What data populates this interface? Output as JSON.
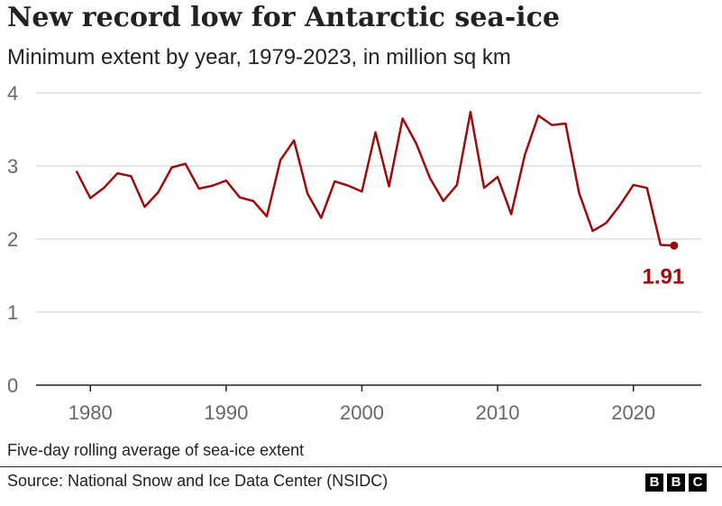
{
  "title": "New record low for Antarctic sea-ice",
  "subtitle": "Minimum extent by year, 1979-2023, in million sq km",
  "note": "Five-day rolling average of sea-ice extent",
  "source": "Source: National Snow and Ice Data Center (NSIDC)",
  "logo": [
    "B",
    "B",
    "C"
  ],
  "colors": {
    "line": "#9b0d0d",
    "grid": "#cccccc",
    "axis": "#222222",
    "tick_text": "#666666"
  },
  "chart_data": {
    "type": "line",
    "title": "New record low for Antarctic sea-ice",
    "subtitle": "Minimum extent by year, 1979-2023, in million sq km",
    "xlim": [
      1976,
      2025
    ],
    "ylim": [
      0,
      4
    ],
    "xticks": [
      1980,
      1990,
      2000,
      2010,
      2020
    ],
    "yticks": [
      0,
      1,
      2,
      3,
      4
    ],
    "grid": "horizontal",
    "x": [
      1979,
      1980,
      1981,
      1982,
      1983,
      1984,
      1985,
      1986,
      1987,
      1988,
      1989,
      1990,
      1991,
      1992,
      1993,
      1994,
      1995,
      1996,
      1997,
      1998,
      1999,
      2000,
      2001,
      2002,
      2003,
      2004,
      2005,
      2006,
      2007,
      2008,
      2009,
      2010,
      2011,
      2012,
      2013,
      2014,
      2015,
      2016,
      2017,
      2018,
      2019,
      2020,
      2021,
      2022,
      2023
    ],
    "series": [
      {
        "values": [
          2.92,
          2.56,
          2.7,
          2.9,
          2.86,
          2.44,
          2.64,
          2.98,
          3.03,
          2.69,
          2.73,
          2.8,
          2.57,
          2.52,
          2.31,
          3.08,
          3.35,
          2.62,
          2.29,
          2.79,
          2.73,
          2.65,
          3.46,
          2.72,
          3.65,
          3.31,
          2.84,
          2.52,
          2.74,
          3.74,
          2.7,
          2.85,
          2.34,
          3.15,
          3.69,
          3.56,
          3.58,
          2.63,
          2.11,
          2.22,
          2.46,
          2.74,
          2.7,
          1.92,
          1.91
        ]
      }
    ],
    "annotation": {
      "x": 2023,
      "y": 1.91,
      "label": "1.91"
    }
  }
}
